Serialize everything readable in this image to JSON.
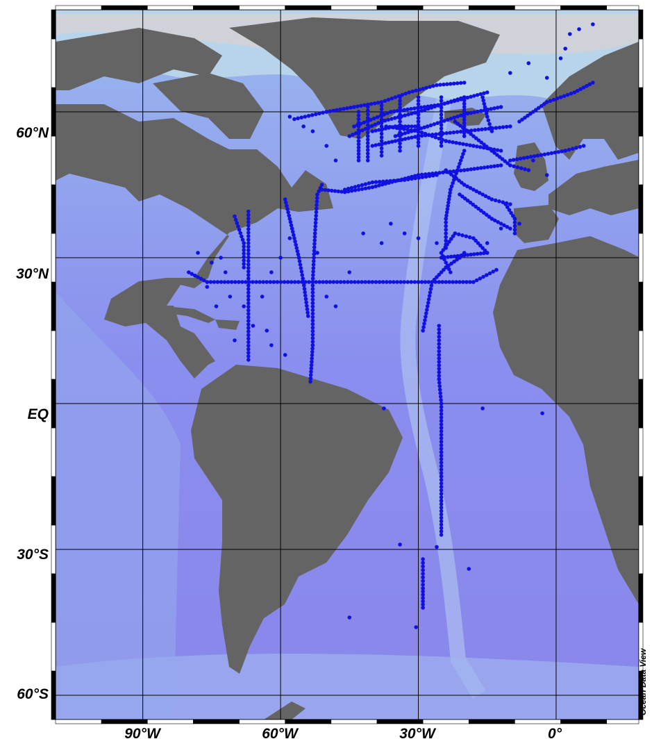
{
  "map": {
    "projection": "equirectangular-like (Ocean Data View)",
    "extent": {
      "lon_min": -109,
      "lon_max": 18,
      "lat_min": -65,
      "lat_max": 81
    },
    "colors": {
      "land": "#646464",
      "deep_ocean": "#8a86ee",
      "shallow_ocean": "#a8c4f0",
      "shelf": "#d9c7b8",
      "stations": "#1010e0",
      "grid": "#000000"
    },
    "lat_labels": [
      {
        "lat": 60,
        "text": "60°N"
      },
      {
        "lat": 30,
        "text": "30°N"
      },
      {
        "lat": 0,
        "text": "EQ"
      },
      {
        "lat": -30,
        "text": "30°S"
      },
      {
        "lat": -60,
        "text": "60°S"
      }
    ],
    "lon_labels": [
      {
        "lon": -90,
        "text": "90°W"
      },
      {
        "lon": -60,
        "text": "60°W"
      },
      {
        "lon": -30,
        "text": "30°W"
      },
      {
        "lon": 0,
        "text": "0°"
      }
    ],
    "credit": "Ocean Data View",
    "station_tracks": [
      [
        [
          -80,
          27
        ],
        [
          -76,
          25
        ],
        [
          -50,
          25
        ],
        [
          -30,
          25
        ],
        [
          -18,
          25
        ],
        [
          -13,
          27.5
        ]
      ],
      [
        [
          -67,
          9
        ],
        [
          -67,
          25
        ],
        [
          -67,
          39.5
        ]
      ],
      [
        [
          -70,
          38.5
        ],
        [
          -68,
          33
        ],
        [
          -68,
          28
        ]
      ],
      [
        [
          -53.5,
          4.5
        ],
        [
          -53,
          12
        ],
        [
          -53,
          25
        ],
        [
          -52.5,
          35
        ],
        [
          -52,
          43
        ],
        [
          -51,
          45
        ]
      ],
      [
        [
          -51,
          44
        ],
        [
          -46,
          43.5
        ],
        [
          -40,
          44.5
        ],
        [
          -30,
          47
        ],
        [
          -20,
          48
        ],
        [
          -12,
          49
        ]
      ],
      [
        [
          -59,
          42
        ],
        [
          -57.5,
          36
        ],
        [
          -56,
          30
        ],
        [
          -55,
          25
        ],
        [
          -54,
          18
        ]
      ],
      [
        [
          -29,
          15
        ],
        [
          -28,
          20
        ],
        [
          -27,
          25
        ],
        [
          -24,
          28
        ],
        [
          -21,
          30
        ],
        [
          -20,
          31
        ]
      ],
      [
        [
          -25.5,
          16
        ],
        [
          -25.5,
          10
        ],
        [
          -25.5,
          5
        ],
        [
          -25,
          0
        ],
        [
          -25,
          -5
        ],
        [
          -25,
          -10
        ],
        [
          -25,
          -15
        ],
        [
          -25,
          -20
        ],
        [
          -25,
          -27
        ]
      ],
      [
        [
          -29,
          -32
        ],
        [
          -29,
          -38
        ],
        [
          -29,
          -42
        ]
      ],
      [
        [
          -24,
          32
        ],
        [
          -24,
          38
        ],
        [
          -23,
          44
        ],
        [
          -20,
          52
        ]
      ],
      [
        [
          -24,
          48
        ],
        [
          -20,
          45
        ],
        [
          -14,
          42
        ],
        [
          -10,
          41
        ]
      ],
      [
        [
          -35,
          55
        ],
        [
          -28,
          57
        ],
        [
          -20,
          59.5
        ],
        [
          -12,
          61
        ]
      ],
      [
        [
          -40,
          53
        ],
        [
          -30,
          55
        ],
        [
          -20,
          56
        ],
        [
          -10,
          57
        ]
      ],
      [
        [
          -45,
          55
        ],
        [
          -38,
          58
        ],
        [
          -30,
          60
        ],
        [
          -20,
          63
        ]
      ],
      [
        [
          -57,
          58.5
        ],
        [
          -50,
          60
        ],
        [
          -44,
          61
        ],
        [
          -38,
          62
        ],
        [
          -32,
          64
        ],
        [
          -26,
          65.5
        ],
        [
          -20,
          66
        ]
      ],
      [
        [
          -44,
          57
        ],
        [
          -36,
          60
        ],
        [
          -25,
          61.5
        ],
        [
          -15,
          64
        ]
      ],
      [
        [
          -43,
          60
        ],
        [
          -43,
          54
        ],
        [
          -43,
          50
        ]
      ],
      [
        [
          -41,
          61
        ],
        [
          -41,
          55
        ],
        [
          -41,
          50
        ]
      ],
      [
        [
          -38,
          62
        ],
        [
          -38,
          57
        ],
        [
          -38,
          51
        ]
      ],
      [
        [
          -34,
          63
        ],
        [
          -34,
          58
        ],
        [
          -34,
          52
        ]
      ],
      [
        [
          -30,
          63
        ],
        [
          -30,
          58
        ],
        [
          -30,
          53
        ]
      ],
      [
        [
          -25,
          63
        ],
        [
          -25,
          58
        ],
        [
          -25,
          53
        ]
      ],
      [
        [
          -20,
          63
        ],
        [
          -20,
          59
        ],
        [
          -20,
          55
        ]
      ],
      [
        [
          -16,
          63
        ],
        [
          -15,
          59
        ],
        [
          -14,
          56
        ]
      ],
      [
        [
          -22,
          58
        ],
        [
          -14,
          52
        ],
        [
          -10,
          49
        ],
        [
          -6,
          48
        ]
      ],
      [
        [
          -10,
          50
        ],
        [
          -4,
          51
        ],
        [
          2,
          52
        ],
        [
          6,
          53
        ]
      ],
      [
        [
          -8,
          58
        ],
        [
          -2,
          62
        ],
        [
          4,
          64
        ],
        [
          8,
          66
        ]
      ],
      [
        [
          -11,
          41
        ],
        [
          -9,
          38
        ],
        [
          -9,
          35
        ]
      ],
      [
        [
          -21,
          43
        ],
        [
          -14,
          38
        ],
        [
          -10,
          36
        ]
      ],
      [
        [
          -25,
          30
        ],
        [
          -20,
          30.5
        ],
        [
          -15,
          31
        ],
        [
          -18,
          34
        ],
        [
          -22,
          35
        ],
        [
          -25,
          31
        ],
        [
          -23,
          27
        ]
      ],
      [
        [
          -37,
          57
        ],
        [
          -30,
          56
        ],
        [
          -24,
          54
        ],
        [
          -18,
          53
        ],
        [
          -12,
          52
        ]
      ],
      [
        [
          -46,
          44
        ],
        [
          -40,
          45.5
        ],
        [
          -33,
          46
        ],
        [
          -26,
          47
        ]
      ],
      [
        [
          -40,
          56
        ],
        [
          -35,
          57
        ],
        [
          -30,
          57
        ]
      ]
    ],
    "station_points": [
      [
        -34,
        -29
      ],
      [
        -26,
        -29.5
      ],
      [
        -30.5,
        -46
      ],
      [
        -45,
        -44
      ],
      [
        -19,
        -34
      ],
      [
        -37.5,
        -1
      ],
      [
        -16,
        -1
      ],
      [
        -3,
        -2
      ],
      [
        -50,
        22
      ],
      [
        -48,
        20
      ],
      [
        -60,
        30
      ],
      [
        -58,
        34
      ],
      [
        -62,
        27
      ],
      [
        -64,
        22
      ],
      [
        -71,
        22
      ],
      [
        -74,
        20
      ],
      [
        -76,
        24
      ],
      [
        -73,
        30
      ],
      [
        -68,
        20
      ],
      [
        -62,
        12
      ],
      [
        -59,
        10
      ],
      [
        -63,
        15
      ],
      [
        -45,
        27
      ],
      [
        -38,
        33
      ],
      [
        -30,
        34
      ],
      [
        -26,
        33
      ],
      [
        -15,
        33
      ],
      [
        -12,
        36
      ],
      [
        -8,
        37
      ],
      [
        3,
        76
      ],
      [
        5,
        77
      ],
      [
        8,
        78
      ],
      [
        2,
        73
      ],
      [
        1,
        71
      ],
      [
        -6,
        70
      ],
      [
        -10,
        68
      ],
      [
        -2,
        67
      ],
      [
        -5,
        50
      ],
      [
        -2,
        47
      ],
      [
        -48,
        50
      ],
      [
        -50,
        53
      ],
      [
        -53,
        56
      ],
      [
        -55,
        57
      ],
      [
        -58,
        59
      ],
      [
        -42,
        35
      ],
      [
        -36,
        37
      ],
      [
        -33,
        35
      ],
      [
        -52,
        31
      ],
      [
        -70,
        13
      ],
      [
        -66,
        16
      ],
      [
        -72,
        27
      ],
      [
        -78,
        31
      ],
      [
        -75,
        29
      ]
    ]
  }
}
